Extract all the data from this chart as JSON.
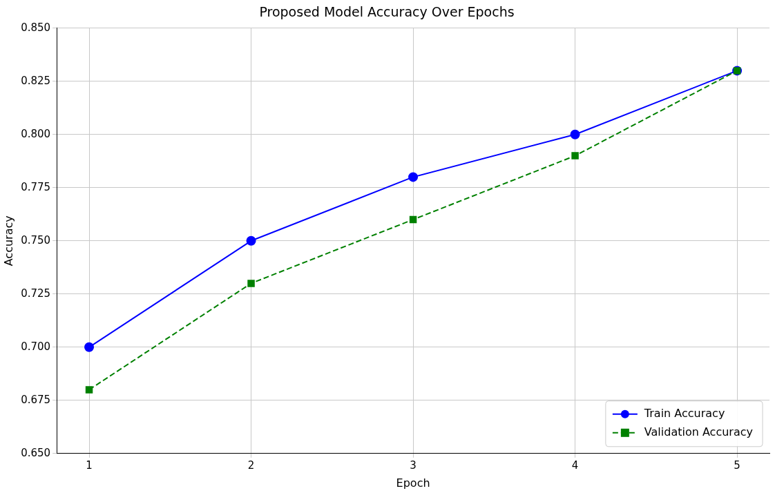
{
  "chart_data": {
    "type": "line",
    "title": "Proposed Model Accuracy Over Epochs",
    "xlabel": "Epoch",
    "ylabel": "Accuracy",
    "x": [
      1,
      2,
      3,
      4,
      5
    ],
    "series": [
      {
        "name": "Train Accuracy",
        "color": "#0000ff",
        "values": [
          0.7,
          0.75,
          0.78,
          0.8,
          0.83
        ],
        "marker": "circle",
        "line_style": "solid"
      },
      {
        "name": "Validation Accuracy",
        "color": "#008000",
        "values": [
          0.68,
          0.73,
          0.76,
          0.79,
          0.83
        ],
        "marker": "square",
        "line_style": "dashed"
      }
    ],
    "xlim": [
      0.8,
      5.2
    ],
    "xticks": [
      1,
      2,
      3,
      4,
      5
    ],
    "ylim": [
      0.65,
      0.85
    ],
    "yticks": [
      {
        "value": 0.65,
        "label": "0.650"
      },
      {
        "value": 0.675,
        "label": "0.675"
      },
      {
        "value": 0.7,
        "label": "0.700"
      },
      {
        "value": 0.725,
        "label": "0.725"
      },
      {
        "value": 0.75,
        "label": "0.750"
      },
      {
        "value": 0.775,
        "label": "0.775"
      },
      {
        "value": 0.8,
        "label": "0.800"
      },
      {
        "value": 0.825,
        "label": "0.825"
      },
      {
        "value": 0.85,
        "label": "0.850"
      }
    ],
    "grid": true,
    "legend": "bottom right"
  }
}
